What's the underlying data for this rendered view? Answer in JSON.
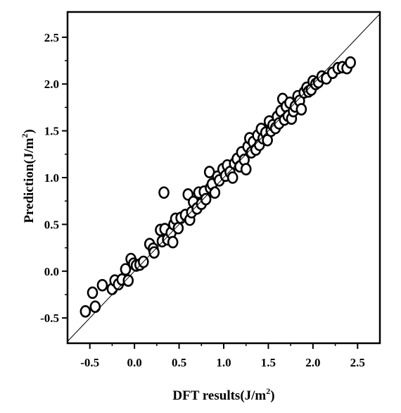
{
  "chart_data": {
    "type": "scatter",
    "xlabel": "DFT results(J/m",
    "xlabel_sup": "2",
    "xlabel_tail": ")",
    "ylabel": "Prediction(J/m",
    "ylabel_sup": "2",
    "ylabel_tail": ")",
    "xlim": [
      -0.75,
      2.75
    ],
    "ylim": [
      -0.77,
      2.77
    ],
    "xticks": [
      "-0.5",
      "0.0",
      "0.5",
      "1.0",
      "1.5",
      "2.0",
      "2.5"
    ],
    "xtick_values": [
      -0.5,
      0.0,
      0.5,
      1.0,
      1.5,
      2.0,
      2.5
    ],
    "yticks": [
      "-0.5",
      "0.0",
      "0.5",
      "1.0",
      "1.5",
      "2.0",
      "2.5"
    ],
    "ytick_values": [
      -0.5,
      0.0,
      0.5,
      1.0,
      1.5,
      2.0,
      2.5
    ],
    "grid": false,
    "reference_line": "y = x",
    "marker": "open-circle",
    "colors": {
      "marker_edge": "#000000",
      "marker_fill": "#ffffff",
      "line": "#000000"
    },
    "points": [
      [
        -0.55,
        -0.43
      ],
      [
        -0.47,
        -0.23
      ],
      [
        -0.44,
        -0.38
      ],
      [
        -0.36,
        -0.15
      ],
      [
        -0.25,
        -0.19
      ],
      [
        -0.22,
        -0.1
      ],
      [
        -0.18,
        -0.14
      ],
      [
        -0.14,
        -0.09
      ],
      [
        -0.1,
        0.02
      ],
      [
        -0.07,
        -0.1
      ],
      [
        -0.04,
        0.13
      ],
      [
        -0.01,
        0.08
      ],
      [
        0.02,
        0.06
      ],
      [
        0.06,
        0.07
      ],
      [
        0.1,
        0.1
      ],
      [
        0.17,
        0.29
      ],
      [
        0.21,
        0.24
      ],
      [
        0.22,
        0.2
      ],
      [
        0.29,
        0.44
      ],
      [
        0.31,
        0.32
      ],
      [
        0.33,
        0.84
      ],
      [
        0.34,
        0.45
      ],
      [
        0.37,
        0.34
      ],
      [
        0.41,
        0.41
      ],
      [
        0.43,
        0.31
      ],
      [
        0.44,
        0.5
      ],
      [
        0.46,
        0.56
      ],
      [
        0.49,
        0.46
      ],
      [
        0.52,
        0.57
      ],
      [
        0.57,
        0.6
      ],
      [
        0.6,
        0.82
      ],
      [
        0.62,
        0.55
      ],
      [
        0.64,
        0.63
      ],
      [
        0.66,
        0.74
      ],
      [
        0.7,
        0.67
      ],
      [
        0.72,
        0.84
      ],
      [
        0.75,
        0.72
      ],
      [
        0.78,
        0.85
      ],
      [
        0.8,
        0.77
      ],
      [
        0.84,
        1.06
      ],
      [
        0.85,
        0.89
      ],
      [
        0.87,
        0.93
      ],
      [
        0.9,
        0.84
      ],
      [
        0.93,
        1.01
      ],
      [
        0.95,
        0.97
      ],
      [
        0.99,
        1.09
      ],
      [
        1.02,
        1.02
      ],
      [
        1.04,
        1.13
      ],
      [
        1.07,
        1.06
      ],
      [
        1.1,
        1.0
      ],
      [
        1.12,
        1.15
      ],
      [
        1.15,
        1.2
      ],
      [
        1.18,
        1.12
      ],
      [
        1.2,
        1.27
      ],
      [
        1.23,
        1.19
      ],
      [
        1.25,
        1.09
      ],
      [
        1.27,
        1.33
      ],
      [
        1.29,
        1.42
      ],
      [
        1.31,
        1.27
      ],
      [
        1.33,
        1.38
      ],
      [
        1.36,
        1.3
      ],
      [
        1.38,
        1.45
      ],
      [
        1.4,
        1.35
      ],
      [
        1.42,
        1.52
      ],
      [
        1.44,
        1.42
      ],
      [
        1.47,
        1.48
      ],
      [
        1.49,
        1.4
      ],
      [
        1.51,
        1.6
      ],
      [
        1.53,
        1.5
      ],
      [
        1.55,
        1.56
      ],
      [
        1.58,
        1.53
      ],
      [
        1.6,
        1.65
      ],
      [
        1.62,
        1.58
      ],
      [
        1.64,
        1.71
      ],
      [
        1.66,
        1.84
      ],
      [
        1.68,
        1.62
      ],
      [
        1.7,
        1.76
      ],
      [
        1.72,
        1.66
      ],
      [
        1.74,
        1.8
      ],
      [
        1.76,
        1.63
      ],
      [
        1.78,
        1.71
      ],
      [
        1.8,
        1.76
      ],
      [
        1.83,
        1.87
      ],
      [
        1.85,
        1.82
      ],
      [
        1.87,
        1.73
      ],
      [
        1.9,
        1.91
      ],
      [
        1.93,
        1.96
      ],
      [
        1.95,
        1.92
      ],
      [
        1.98,
        1.94
      ],
      [
        2.0,
        2.03
      ],
      [
        2.03,
        2.0
      ],
      [
        2.06,
        2.02
      ],
      [
        2.1,
        2.08
      ],
      [
        2.15,
        2.06
      ],
      [
        2.22,
        2.12
      ],
      [
        2.28,
        2.17
      ],
      [
        2.33,
        2.18
      ],
      [
        2.38,
        2.17
      ],
      [
        2.42,
        2.23
      ]
    ]
  }
}
